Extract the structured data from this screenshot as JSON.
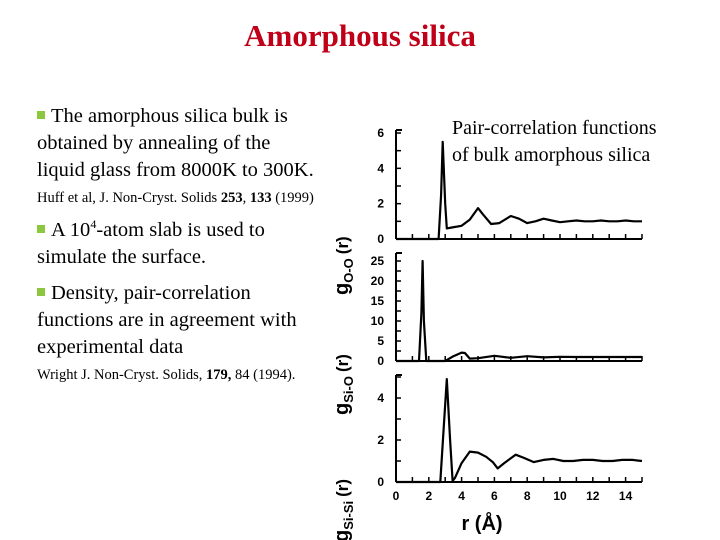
{
  "slide": {
    "title": "Amorphous silica",
    "title_color": "#c00018",
    "bullet_color": "#8dc63f"
  },
  "bullets": [
    {
      "text": "The amorphous silica bulk is obtained by annealing of the liquid glass from 8000K to 300K.",
      "ref": {
        "pre": "Huff et al, J. Non-Cryst. Solids ",
        "volume": "253",
        "sep": ", ",
        "page_bold": "133",
        "post": " (1999)"
      }
    },
    {
      "text_pre": "A 10",
      "text_sup": "4",
      "text_post": "-atom slab is used to simulate the surface."
    },
    {
      "text": "Density, pair-correlation functions are in agreement with experimental data",
      "ref": {
        "pre": "Wright J. Non-Cryst. Solids, ",
        "volume": "179,",
        "post": " 84 (1994)."
      }
    }
  ],
  "caption": {
    "line1": "Pair-correlation functions",
    "line2": "of bulk amorphous silica"
  },
  "chart_data": [
    {
      "type": "line",
      "title": "",
      "ylabel": "g_O-O (r)",
      "xlabel": "",
      "xlim": [
        0,
        15
      ],
      "ylim": [
        0,
        6
      ],
      "yticks": [
        0,
        2,
        4,
        6
      ],
      "x": [
        0,
        2.6,
        2.75,
        2.85,
        3.0,
        3.1,
        3.4,
        4.0,
        4.5,
        5.0,
        5.3,
        5.8,
        6.3,
        7.0,
        7.5,
        8.0,
        8.5,
        9.0,
        9.5,
        10.0,
        10.5,
        11.0,
        11.5,
        12.0,
        12.5,
        13.0,
        13.5,
        14.0,
        14.5,
        15.0
      ],
      "values": [
        0,
        0,
        2.5,
        5.5,
        2.0,
        0.6,
        0.65,
        0.75,
        1.1,
        1.75,
        1.4,
        0.85,
        0.9,
        1.3,
        1.15,
        0.9,
        1.0,
        1.15,
        1.05,
        0.95,
        1.0,
        1.05,
        1.0,
        1.0,
        1.05,
        1.0,
        1.0,
        1.05,
        1.0,
        1.0
      ]
    },
    {
      "type": "line",
      "title": "",
      "ylabel": "g_Si-O (r)",
      "xlabel": "",
      "xlim": [
        0,
        15
      ],
      "ylim": [
        0,
        25
      ],
      "yticks": [
        0,
        5,
        10,
        15,
        20,
        25
      ],
      "x": [
        0,
        1.4,
        1.55,
        1.62,
        1.7,
        1.85,
        3.0,
        3.5,
        4.0,
        4.2,
        4.5,
        5.0,
        6.0,
        7.0,
        8.0,
        9.0,
        10.0,
        11.0,
        12.0,
        13.0,
        14.0,
        15.0
      ],
      "values": [
        0,
        0,
        12,
        25,
        10,
        0,
        0,
        1.2,
        2.1,
        2.0,
        0.6,
        0.7,
        1.3,
        0.8,
        1.2,
        0.9,
        1.05,
        1.0,
        1.0,
        1.0,
        1.0,
        1.0
      ]
    },
    {
      "type": "line",
      "title": "",
      "ylabel": "g_Si-Si (r)",
      "xlabel": "r (Å)",
      "xlim": [
        0,
        15
      ],
      "ylim": [
        0,
        5
      ],
      "yticks": [
        0,
        2,
        4
      ],
      "xticks": [
        0,
        2,
        4,
        6,
        8,
        10,
        12,
        14
      ],
      "x": [
        0,
        2.7,
        2.9,
        3.1,
        3.3,
        3.45,
        3.6,
        4.0,
        4.5,
        5.0,
        5.5,
        5.9,
        6.2,
        6.6,
        7.3,
        7.8,
        8.4,
        9.0,
        9.6,
        10.2,
        10.8,
        11.4,
        12.0,
        12.6,
        13.2,
        13.8,
        14.4,
        15.0
      ],
      "values": [
        0,
        0,
        2.5,
        4.9,
        2.0,
        0.05,
        0.2,
        0.9,
        1.45,
        1.4,
        1.2,
        0.95,
        0.65,
        0.9,
        1.3,
        1.15,
        0.95,
        1.05,
        1.1,
        1.0,
        1.0,
        1.05,
        1.05,
        1.0,
        1.0,
        1.05,
        1.05,
        1.0
      ]
    }
  ],
  "axis_labels": {
    "top_y_main": "g",
    "top_y_sub": "O-O",
    "mid_y_main": "g",
    "mid_y_sub": "Si-O",
    "bot_y_main": "g",
    "bot_y_sub": "Si-Si",
    "y_suffix": "(r)",
    "x_label": "r (Å)"
  }
}
